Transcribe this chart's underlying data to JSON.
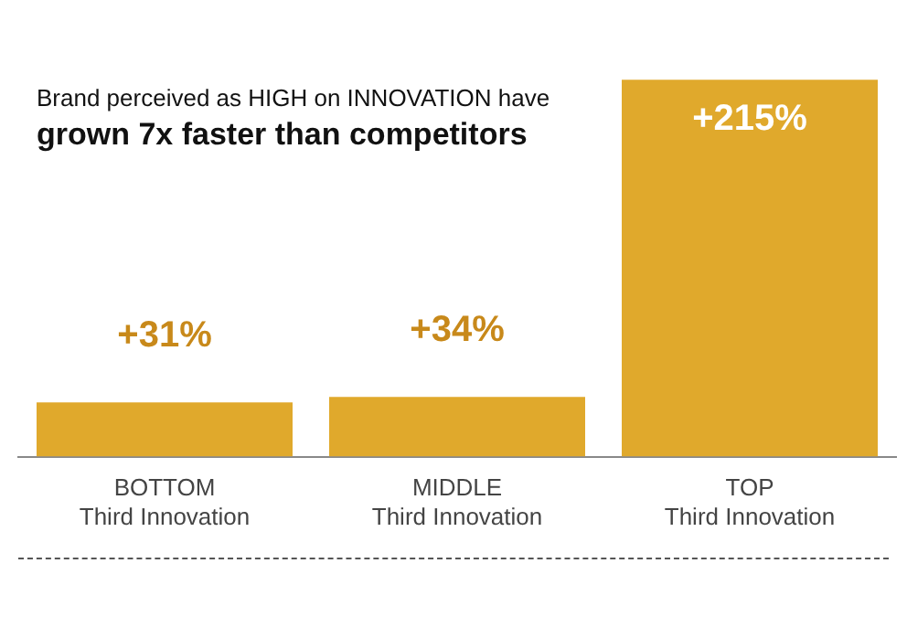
{
  "chart_data": {
    "type": "bar",
    "title": "Brand perceived as HIGH on INNOVATION have\ngrown 7x faster than competitors",
    "categories": [
      "BOTTOM\nThird Innovation",
      "MIDDLE\nThird Innovation",
      "TOP\nThird Innovation"
    ],
    "values": [
      31,
      34,
      215
    ],
    "value_labels": [
      "+31%",
      "+34%",
      "+215%"
    ],
    "color": "#e0a92c",
    "tick_labels": "x",
    "grid": false,
    "legend": false
  }
}
